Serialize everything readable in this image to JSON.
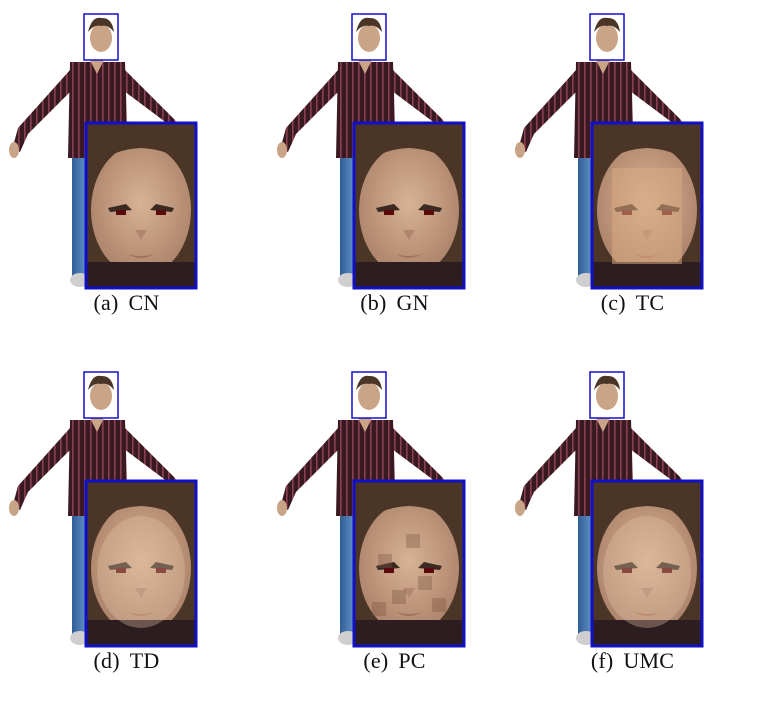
{
  "figure": {
    "panels": [
      {
        "tag": "(a)",
        "label": "CN"
      },
      {
        "tag": "(b)",
        "label": "GN"
      },
      {
        "tag": "(c)",
        "label": "TC"
      },
      {
        "tag": "(d)",
        "label": "TD"
      },
      {
        "tag": "(e)",
        "label": "PC"
      },
      {
        "tag": "(f)",
        "label": "UMC"
      }
    ]
  },
  "colors": {
    "inset_border": "#1010c8",
    "shirt": "#3a1a22",
    "shirt_stripe": "#8a4050",
    "jeans": "#3f6ea8",
    "skin": "#c9a486",
    "hair": "#4a3526"
  }
}
